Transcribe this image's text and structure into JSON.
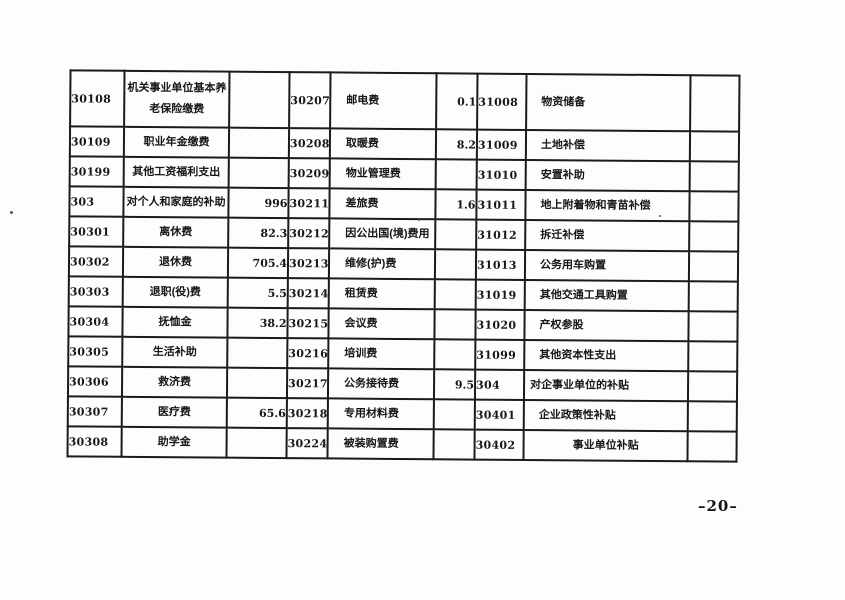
{
  "document": {
    "page_number": "–20–",
    "text_color": "#161616",
    "border_color": "#1b1b1b",
    "background_color": "#fdfdfc"
  },
  "table": {
    "description": "government budget economic classification codes table, three code/name/amount sections per row",
    "rows": [
      {
        "groups": [
          {
            "code": "30108",
            "name": "机关事业单位基本养老保险缴费",
            "amount": ""
          },
          {
            "code": "30207",
            "name": "邮电费",
            "amount": "0.1"
          },
          {
            "code": "31008",
            "name": "物资储备",
            "amount": "",
            "indent": 1
          }
        ]
      },
      {
        "groups": [
          {
            "code": "30109",
            "name": "职业年金缴费",
            "amount": ""
          },
          {
            "code": "30208",
            "name": "取暖费",
            "amount": "8.2"
          },
          {
            "code": "31009",
            "name": "土地补偿",
            "amount": "",
            "indent": 1
          }
        ]
      },
      {
        "groups": [
          {
            "code": "30199",
            "name": "其他工资福利支出",
            "amount": ""
          },
          {
            "code": "30209",
            "name": "物业管理费",
            "amount": ""
          },
          {
            "code": "31010",
            "name": "安置补助",
            "amount": "",
            "indent": 1
          }
        ]
      },
      {
        "groups": [
          {
            "code": "303",
            "name": "对个人和家庭的补助",
            "amount": "996"
          },
          {
            "code": "30211",
            "name": "差旅费",
            "amount": "1.6"
          },
          {
            "code": "31011",
            "name": "地上附着物和青苗补偿",
            "amount": "",
            "indent": 1
          }
        ]
      },
      {
        "groups": [
          {
            "code": "30301",
            "name": "离休费",
            "amount": "82.3"
          },
          {
            "code": "30212",
            "name": "因公出国(境)费用",
            "amount": ""
          },
          {
            "code": "31012",
            "name": "拆迁补偿",
            "amount": "",
            "indent": 1
          }
        ]
      },
      {
        "groups": [
          {
            "code": "30302",
            "name": "退休费",
            "amount": "705.4"
          },
          {
            "code": "30213",
            "name": "维修(护)费",
            "amount": ""
          },
          {
            "code": "31013",
            "name": "公务用车购置",
            "amount": "",
            "indent": 1
          }
        ]
      },
      {
        "groups": [
          {
            "code": "30303",
            "name": "退职(役)费",
            "amount": "5.5"
          },
          {
            "code": "30214",
            "name": "租赁费",
            "amount": ""
          },
          {
            "code": "31019",
            "name": "其他交通工具购置",
            "amount": "",
            "indent": 1
          }
        ]
      },
      {
        "groups": [
          {
            "code": "30304",
            "name": "抚恤金",
            "amount": "38.2"
          },
          {
            "code": "30215",
            "name": "会议费",
            "amount": ""
          },
          {
            "code": "31020",
            "name": "产权参股",
            "amount": "",
            "indent": 1
          }
        ]
      },
      {
        "groups": [
          {
            "code": "30305",
            "name": "生活补助",
            "amount": ""
          },
          {
            "code": "30216",
            "name": "培训费",
            "amount": ""
          },
          {
            "code": "31099",
            "name": "其他资本性支出",
            "amount": "",
            "indent": 1
          }
        ]
      },
      {
        "groups": [
          {
            "code": "30306",
            "name": "救济费",
            "amount": ""
          },
          {
            "code": "30217",
            "name": "公务接待费",
            "amount": "9.5"
          },
          {
            "code": "304",
            "name": "对企事业单位的补贴",
            "amount": "",
            "indent": 0
          }
        ]
      },
      {
        "groups": [
          {
            "code": "30307",
            "name": "医疗费",
            "amount": "65.6"
          },
          {
            "code": "30218",
            "name": "专用材料费",
            "amount": ""
          },
          {
            "code": "30401",
            "name": "企业政策性补贴",
            "amount": "",
            "indent": 1
          }
        ]
      },
      {
        "groups": [
          {
            "code": "30308",
            "name": "助学金",
            "amount": ""
          },
          {
            "code": "30224",
            "name": "被装购置费",
            "amount": ""
          },
          {
            "code": "30402",
            "name": "事业单位补贴",
            "amount": "",
            "indent": 3
          }
        ]
      }
    ]
  }
}
